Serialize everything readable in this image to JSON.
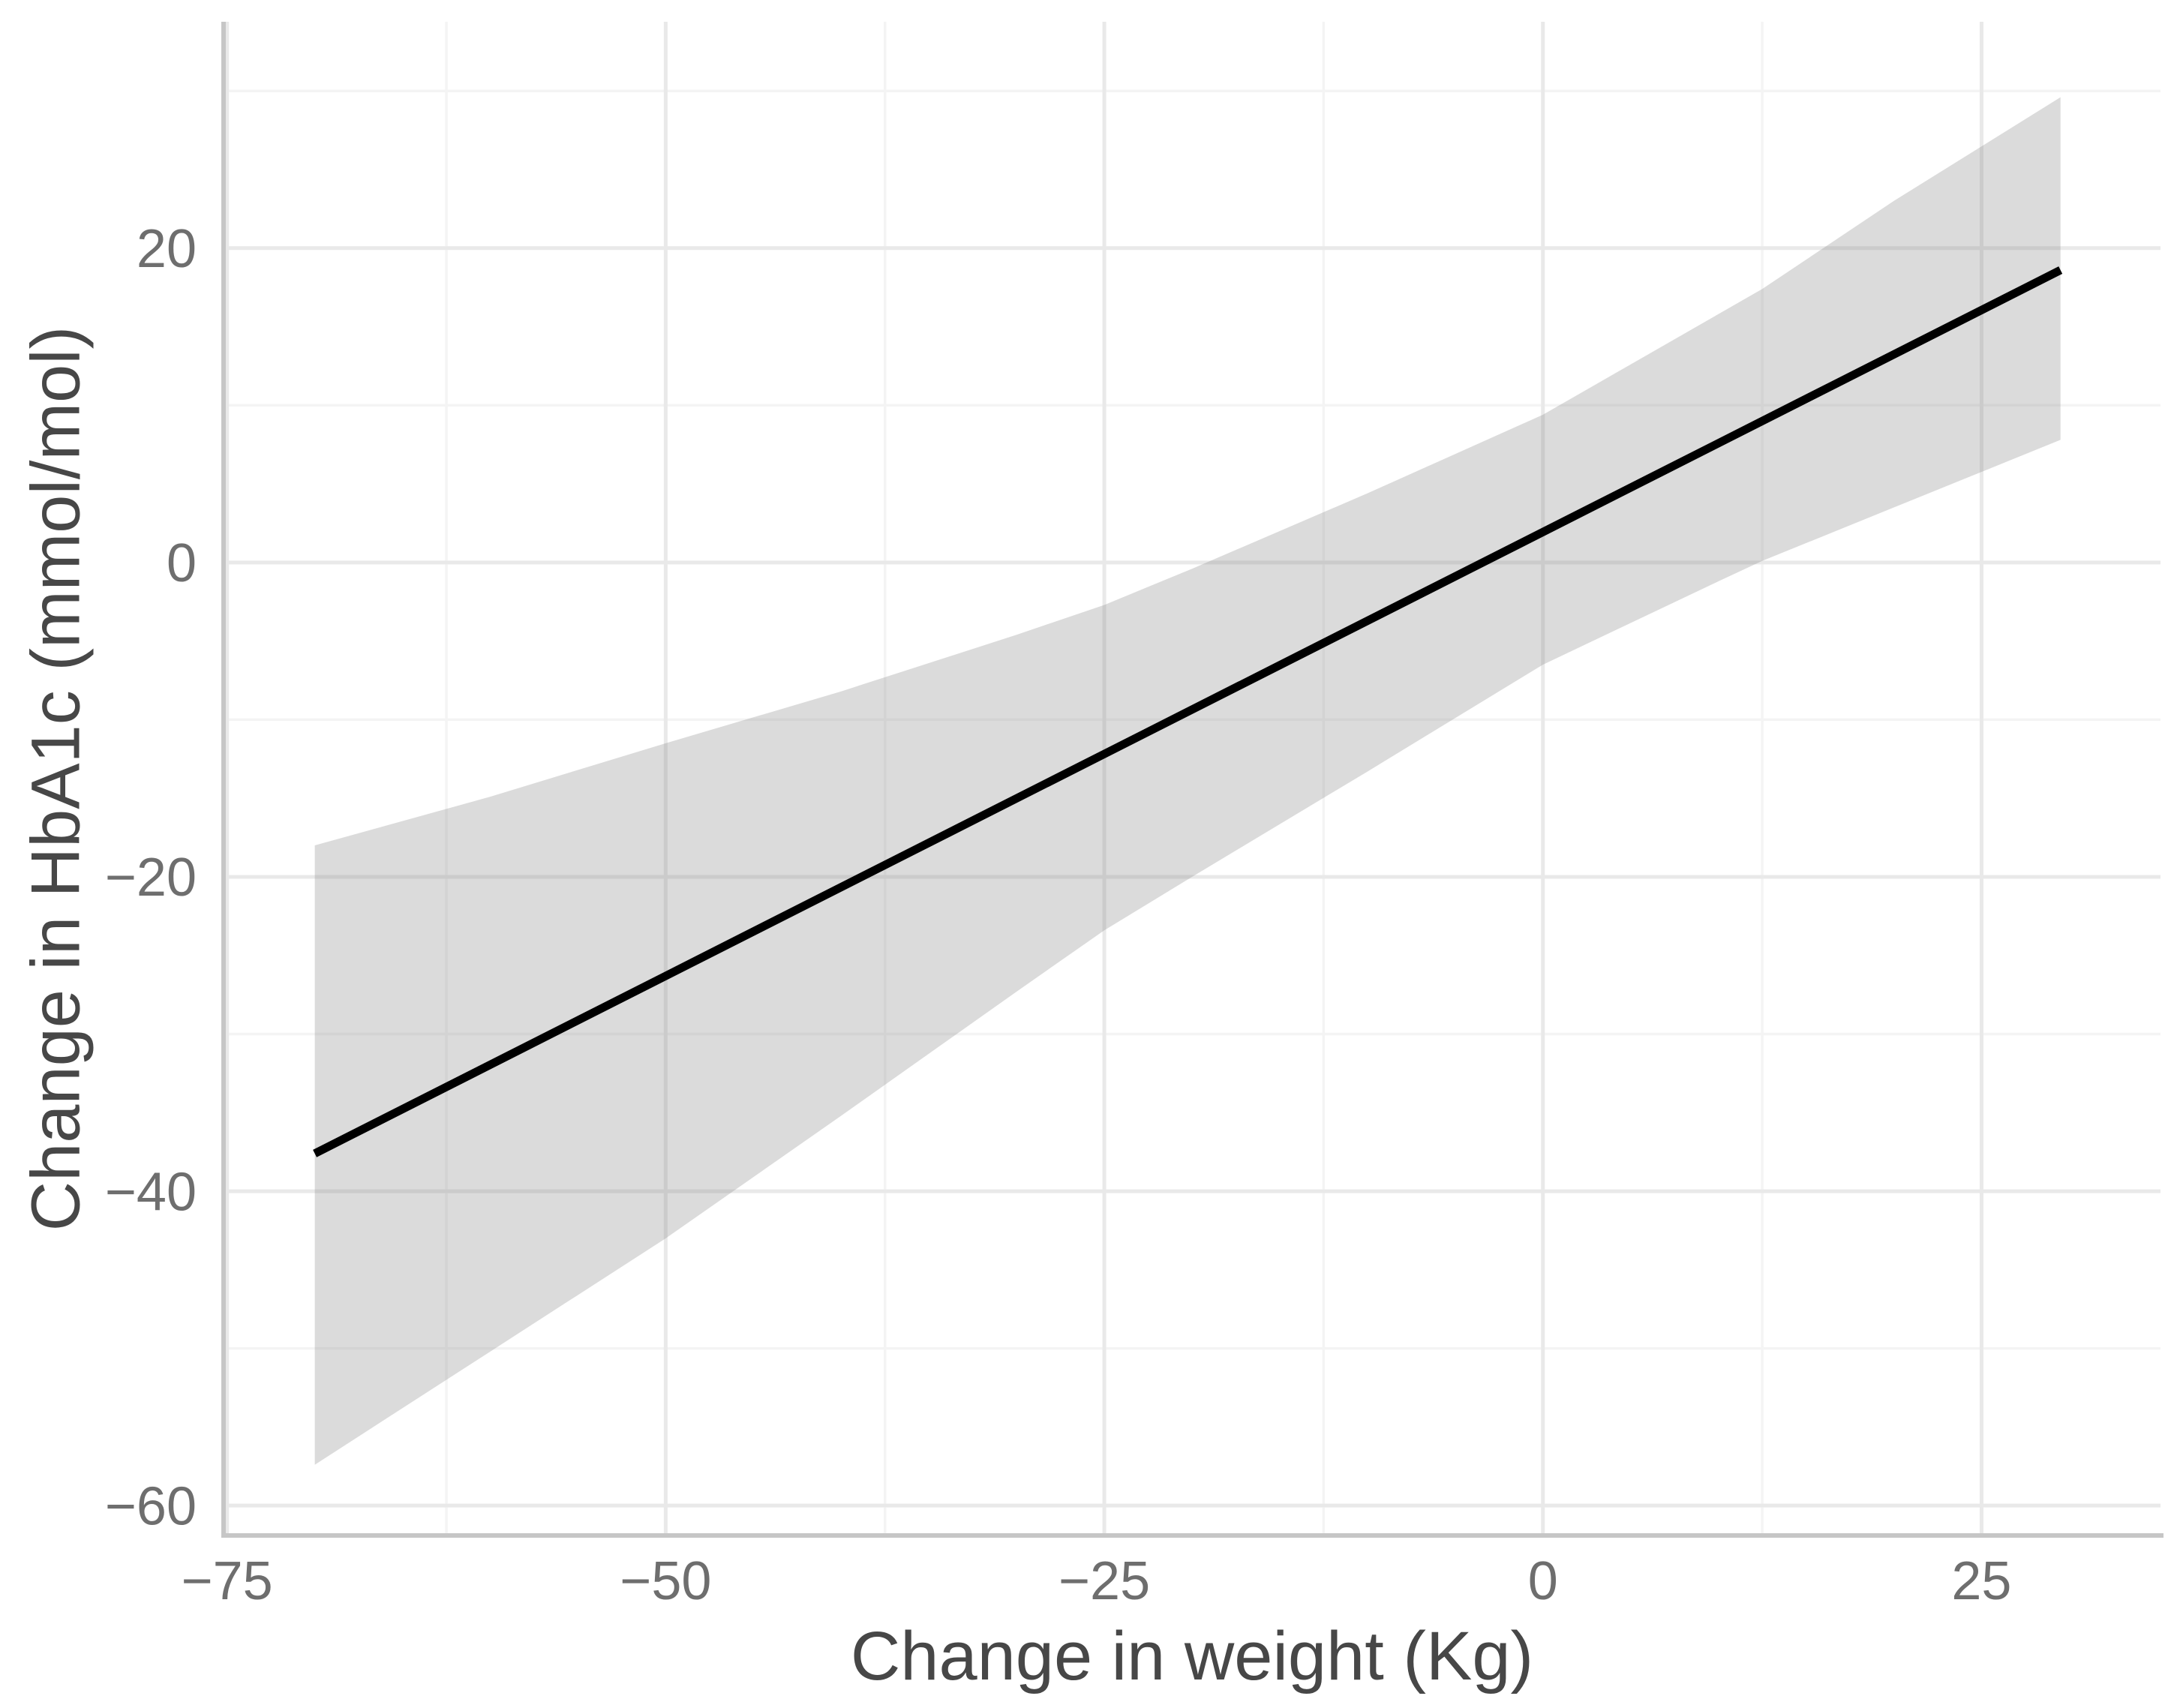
{
  "figure": {
    "background": "#ffffff",
    "description": "Linear regression of change in HbA1c on change in weight with 95% confidence band"
  },
  "chart_data": {
    "type": "line",
    "title": "",
    "xlabel": "Change in weight (Kg)",
    "ylabel": "Change in HbA1c (mmol/mol)",
    "xlim": [
      -75.2,
      35.2
    ],
    "ylim": [
      -61.9,
      34.4
    ],
    "grid": true,
    "legend_position": "none",
    "x_ticks_major": [
      -75,
      -50,
      -25,
      0,
      25
    ],
    "x_tick_labels": [
      "−75",
      "−50",
      "−25",
      "0",
      "25"
    ],
    "x_ticks_minor": [
      -62.5,
      -37.5,
      -12.5,
      12.5
    ],
    "y_ticks_major": [
      20,
      0,
      -20,
      -40,
      -60
    ],
    "y_tick_labels": [
      "20",
      "0",
      "−20",
      "−40",
      "−60"
    ],
    "y_ticks_minor": [
      30,
      10,
      -10,
      -30,
      -50
    ],
    "series": [
      {
        "name": "confidence-band",
        "type": "ribbon",
        "fill": "rgba(127,127,127,0.28)",
        "x": [
          -70,
          -60,
          -50,
          -40,
          -30,
          -25,
          -20,
          -10,
          0,
          10,
          12.5,
          20,
          29.5
        ],
        "upper": [
          -18.0,
          -14.9,
          -11.5,
          -8.2,
          -4.6,
          -2.7,
          -0.4,
          4.4,
          9.4,
          15.8,
          17.4,
          23.0,
          29.6
        ],
        "lower": [
          -57.4,
          -50.2,
          -43.0,
          -35.2,
          -27.3,
          -23.4,
          -20.0,
          -13.3,
          -6.5,
          -1.2,
          0.1,
          3.5,
          7.8
        ]
      },
      {
        "name": "linear-fit",
        "type": "line",
        "color": "#000000",
        "stroke_width": 11,
        "x": [
          -70,
          29.5
        ],
        "y": [
          -37.6,
          18.6
        ]
      }
    ],
    "colors": {
      "axis_line": "#c6c6c6",
      "grid_major": "#e9e9e9",
      "grid_minor": "#f4f4f4",
      "tick_text": "#6e6e6e",
      "title_text": "#474747",
      "panel_background": "#ffffff"
    }
  }
}
